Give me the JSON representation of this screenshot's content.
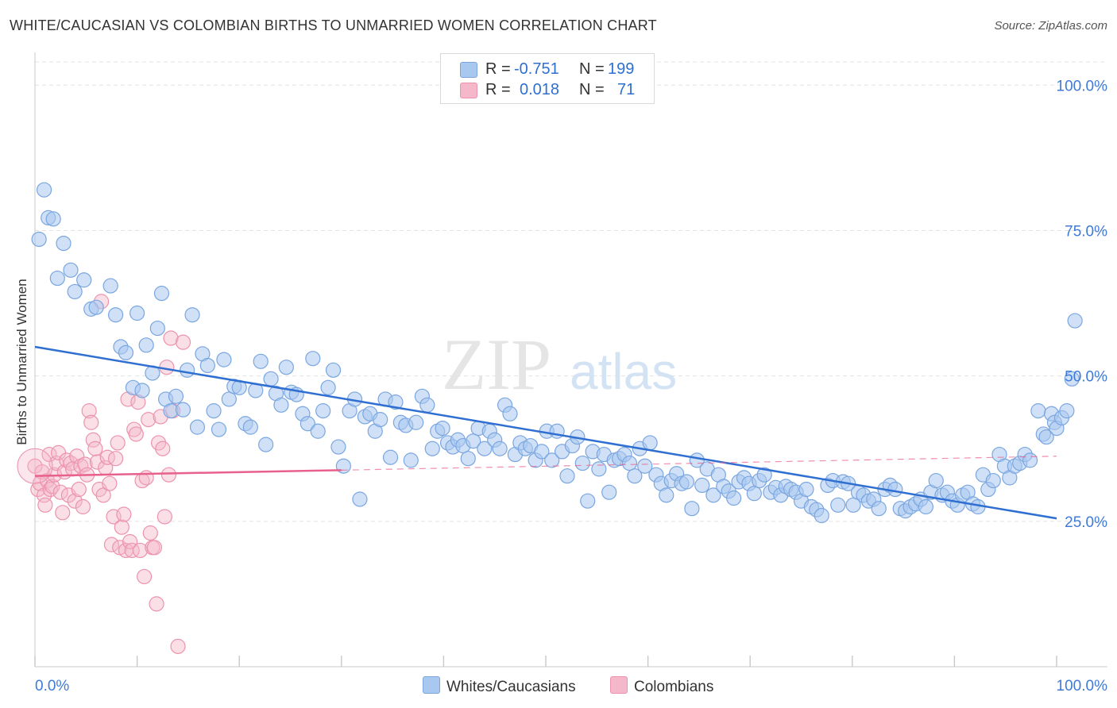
{
  "title": "WHITE/CAUCASIAN VS COLOMBIAN BIRTHS TO UNMARRIED WOMEN CORRELATION CHART",
  "source": "Source: ZipAtlas.com",
  "watermark": {
    "zip": "ZIP",
    "atlas": "atlas"
  },
  "legend": {
    "rows": [
      {
        "r_label": "R =",
        "r_value": "-0.751",
        "n_label": "N =",
        "n_value": "199"
      },
      {
        "r_label": "R =",
        "r_value": "0.018",
        "n_label": "N =",
        "n_value": "71"
      }
    ]
  },
  "bottom_legend": {
    "white": "Whites/Caucasians",
    "colombian": "Colombians"
  },
  "colors": {
    "white_fill": "#a9c8f0",
    "white_stroke": "#7aa6e0",
    "white_line": "#2f6fd1",
    "colombian_fill": "#f5b8ca",
    "colombian_stroke": "#ec93ad",
    "colombian_line": "#e8608c",
    "grid": "#e3e3e3",
    "axis_value": "#3f7ad6"
  },
  "chart_data": {
    "type": "scatter",
    "title": "WHITE/CAUCASIAN VS COLOMBIAN BIRTHS TO UNMARRIED WOMEN CORRELATION CHART",
    "xlabel": "",
    "ylabel": "Births to Unmarried Women",
    "xlim": [
      0,
      100
    ],
    "ylim": [
      0,
      104
    ],
    "x_tick_labels": [
      "0.0%",
      "100.0%"
    ],
    "y_tick_labels": [
      "25.0%",
      "50.0%",
      "75.0%",
      "100.0%"
    ],
    "y_ticks": [
      25,
      50,
      75,
      100
    ],
    "grid": true,
    "legend_position": "top-center",
    "series": [
      {
        "name": "Whites/Caucasians",
        "r": -0.751,
        "n": 199,
        "trend": {
          "x0": 0,
          "y0": 55.0,
          "x1": 100,
          "y1": 25.5
        },
        "points": [
          [
            0.4,
            73.5
          ],
          [
            0.9,
            82.0
          ],
          [
            1.3,
            77.2
          ],
          [
            1.8,
            77.0
          ],
          [
            2.2,
            66.8
          ],
          [
            2.8,
            72.8
          ],
          [
            3.5,
            68.2
          ],
          [
            3.9,
            64.5
          ],
          [
            4.8,
            66.5
          ],
          [
            5.5,
            61.5
          ],
          [
            6.0,
            61.8
          ],
          [
            7.4,
            65.5
          ],
          [
            7.9,
            60.5
          ],
          [
            8.4,
            55.0
          ],
          [
            8.9,
            54.0
          ],
          [
            9.6,
            48.0
          ],
          [
            10.0,
            60.8
          ],
          [
            10.5,
            47.5
          ],
          [
            10.9,
            55.3
          ],
          [
            11.5,
            50.5
          ],
          [
            12.0,
            58.2
          ],
          [
            12.4,
            64.2
          ],
          [
            12.8,
            46.0
          ],
          [
            13.3,
            44.0
          ],
          [
            13.8,
            46.5
          ],
          [
            14.5,
            44.2
          ],
          [
            14.9,
            51.0
          ],
          [
            15.4,
            60.5
          ],
          [
            15.9,
            41.2
          ],
          [
            16.4,
            53.8
          ],
          [
            16.9,
            51.8
          ],
          [
            17.5,
            44.0
          ],
          [
            18.0,
            40.8
          ],
          [
            18.5,
            52.8
          ],
          [
            19.0,
            46.0
          ],
          [
            19.5,
            48.2
          ],
          [
            20.0,
            48.0
          ],
          [
            20.6,
            41.8
          ],
          [
            21.1,
            41.2
          ],
          [
            21.6,
            47.5
          ],
          [
            22.1,
            52.5
          ],
          [
            22.6,
            38.2
          ],
          [
            23.1,
            49.5
          ],
          [
            23.6,
            47.0
          ],
          [
            24.1,
            45.0
          ],
          [
            24.6,
            51.5
          ],
          [
            25.1,
            47.2
          ],
          [
            25.6,
            46.8
          ],
          [
            26.2,
            43.5
          ],
          [
            26.7,
            41.8
          ],
          [
            27.2,
            53.0
          ],
          [
            27.7,
            40.5
          ],
          [
            28.2,
            44.0
          ],
          [
            28.7,
            48.0
          ],
          [
            29.2,
            51.0
          ],
          [
            29.7,
            37.8
          ],
          [
            30.2,
            34.5
          ],
          [
            30.8,
            44.0
          ],
          [
            31.3,
            46.0
          ],
          [
            31.8,
            28.8
          ],
          [
            32.3,
            43.0
          ],
          [
            32.8,
            43.5
          ],
          [
            33.3,
            40.5
          ],
          [
            33.8,
            42.5
          ],
          [
            34.3,
            46.0
          ],
          [
            34.8,
            36.0
          ],
          [
            35.3,
            45.5
          ],
          [
            35.8,
            42.0
          ],
          [
            36.3,
            41.5
          ],
          [
            36.8,
            35.5
          ],
          [
            37.3,
            42.0
          ],
          [
            37.9,
            46.5
          ],
          [
            38.4,
            45.0
          ],
          [
            38.9,
            37.5
          ],
          [
            39.4,
            40.5
          ],
          [
            39.9,
            41.0
          ],
          [
            40.4,
            38.5
          ],
          [
            40.9,
            37.8
          ],
          [
            41.4,
            39.0
          ],
          [
            41.9,
            38.0
          ],
          [
            42.4,
            35.8
          ],
          [
            42.9,
            38.8
          ],
          [
            43.4,
            41.0
          ],
          [
            44.0,
            37.5
          ],
          [
            44.5,
            40.5
          ],
          [
            45.0,
            39.0
          ],
          [
            45.5,
            37.5
          ],
          [
            46.0,
            45.0
          ],
          [
            46.5,
            43.5
          ],
          [
            47.0,
            36.5
          ],
          [
            47.5,
            38.5
          ],
          [
            48.0,
            37.5
          ],
          [
            48.5,
            38.0
          ],
          [
            49.0,
            35.5
          ],
          [
            49.6,
            37.0
          ],
          [
            50.1,
            40.5
          ],
          [
            50.6,
            35.5
          ],
          [
            51.1,
            40.5
          ],
          [
            51.6,
            37.0
          ],
          [
            52.1,
            32.8
          ],
          [
            52.6,
            38.0
          ],
          [
            53.1,
            39.5
          ],
          [
            53.6,
            35.0
          ],
          [
            54.1,
            28.5
          ],
          [
            54.6,
            37.0
          ],
          [
            55.2,
            34.0
          ],
          [
            55.7,
            36.5
          ],
          [
            56.2,
            30.0
          ],
          [
            56.7,
            35.5
          ],
          [
            57.2,
            35.8
          ],
          [
            57.7,
            36.5
          ],
          [
            58.2,
            35.0
          ],
          [
            58.7,
            32.8
          ],
          [
            59.2,
            37.5
          ],
          [
            59.7,
            34.5
          ],
          [
            60.2,
            38.5
          ],
          [
            60.8,
            33.0
          ],
          [
            61.3,
            31.5
          ],
          [
            61.8,
            29.5
          ],
          [
            62.3,
            32.0
          ],
          [
            62.8,
            33.2
          ],
          [
            63.3,
            31.5
          ],
          [
            63.8,
            31.8
          ],
          [
            64.3,
            27.2
          ],
          [
            64.8,
            35.5
          ],
          [
            65.3,
            31.2
          ],
          [
            65.8,
            34.0
          ],
          [
            66.4,
            29.5
          ],
          [
            66.9,
            33.0
          ],
          [
            67.4,
            31.0
          ],
          [
            67.9,
            30.2
          ],
          [
            68.4,
            29.0
          ],
          [
            68.9,
            31.8
          ],
          [
            69.4,
            32.5
          ],
          [
            69.9,
            31.5
          ],
          [
            70.4,
            29.8
          ],
          [
            70.9,
            32.0
          ],
          [
            71.4,
            33.0
          ],
          [
            72.0,
            30.0
          ],
          [
            72.5,
            30.8
          ],
          [
            73.0,
            29.5
          ],
          [
            73.5,
            31.0
          ],
          [
            74.0,
            30.5
          ],
          [
            74.5,
            30.0
          ],
          [
            75.0,
            28.5
          ],
          [
            75.5,
            30.5
          ],
          [
            76.0,
            27.5
          ],
          [
            76.5,
            27.0
          ],
          [
            77.0,
            26.0
          ],
          [
            77.6,
            31.2
          ],
          [
            78.1,
            32.0
          ],
          [
            78.6,
            27.8
          ],
          [
            79.1,
            31.8
          ],
          [
            79.6,
            31.5
          ],
          [
            80.1,
            27.8
          ],
          [
            80.6,
            30.0
          ],
          [
            81.1,
            29.5
          ],
          [
            81.6,
            28.5
          ],
          [
            82.1,
            28.8
          ],
          [
            82.6,
            27.2
          ],
          [
            83.2,
            30.5
          ],
          [
            83.7,
            31.2
          ],
          [
            84.2,
            30.5
          ],
          [
            84.7,
            27.2
          ],
          [
            85.2,
            26.8
          ],
          [
            85.7,
            27.5
          ],
          [
            86.2,
            28.0
          ],
          [
            86.7,
            28.8
          ],
          [
            87.2,
            27.5
          ],
          [
            87.7,
            30.0
          ],
          [
            88.2,
            32.0
          ],
          [
            88.8,
            29.5
          ],
          [
            89.3,
            30.0
          ],
          [
            89.8,
            28.5
          ],
          [
            90.3,
            27.8
          ],
          [
            90.8,
            29.5
          ],
          [
            91.3,
            30.0
          ],
          [
            91.8,
            28.0
          ],
          [
            92.3,
            27.5
          ],
          [
            92.8,
            33.0
          ],
          [
            93.3,
            30.5
          ],
          [
            93.8,
            32.0
          ],
          [
            94.4,
            36.5
          ],
          [
            94.9,
            34.5
          ],
          [
            95.4,
            32.5
          ],
          [
            95.9,
            34.5
          ],
          [
            96.4,
            35.0
          ],
          [
            96.9,
            36.5
          ],
          [
            97.4,
            35.5
          ],
          [
            98.2,
            44.0
          ],
          [
            98.7,
            40.0
          ],
          [
            99.0,
            39.5
          ],
          [
            99.5,
            43.5
          ],
          [
            99.8,
            42.0
          ],
          [
            100.0,
            41.0
          ],
          [
            100.5,
            42.8
          ],
          [
            101.0,
            44.0
          ],
          [
            101.5,
            49.5
          ],
          [
            101.8,
            59.5
          ]
        ]
      },
      {
        "name": "Colombians",
        "r": 0.018,
        "n": 71,
        "trend": {
          "x0": 0,
          "y0": 32.8,
          "x1": 30,
          "y1": 33.8
        },
        "trend_extension": {
          "x0": 30,
          "y0": 33.8,
          "x1": 100,
          "y1": 36.2
        },
        "points": [
          [
            0.0,
            34.5
          ],
          [
            0.3,
            30.5
          ],
          [
            0.5,
            31.5
          ],
          [
            0.7,
            33.5
          ],
          [
            0.9,
            29.5
          ],
          [
            1.0,
            27.8
          ],
          [
            1.2,
            32.0
          ],
          [
            1.4,
            36.5
          ],
          [
            1.5,
            30.5
          ],
          [
            1.7,
            31.0
          ],
          [
            1.9,
            33.0
          ],
          [
            2.1,
            35.0
          ],
          [
            2.3,
            36.8
          ],
          [
            2.5,
            30.0
          ],
          [
            2.7,
            26.5
          ],
          [
            2.9,
            33.5
          ],
          [
            3.1,
            35.5
          ],
          [
            3.3,
            29.5
          ],
          [
            3.5,
            35.0
          ],
          [
            3.7,
            34.0
          ],
          [
            3.9,
            28.5
          ],
          [
            4.1,
            36.2
          ],
          [
            4.3,
            30.5
          ],
          [
            4.5,
            34.5
          ],
          [
            4.7,
            27.5
          ],
          [
            4.9,
            34.8
          ],
          [
            5.1,
            33.0
          ],
          [
            5.3,
            44.0
          ],
          [
            5.5,
            42.0
          ],
          [
            5.7,
            39.0
          ],
          [
            5.9,
            37.5
          ],
          [
            6.1,
            35.2
          ],
          [
            6.3,
            30.5
          ],
          [
            6.5,
            62.8
          ],
          [
            6.7,
            29.5
          ],
          [
            6.9,
            34.2
          ],
          [
            7.1,
            36.0
          ],
          [
            7.3,
            31.5
          ],
          [
            7.5,
            21.0
          ],
          [
            7.7,
            25.8
          ],
          [
            7.9,
            35.8
          ],
          [
            8.1,
            38.5
          ],
          [
            8.3,
            20.5
          ],
          [
            8.5,
            24.0
          ],
          [
            8.7,
            26.2
          ],
          [
            8.9,
            20.0
          ],
          [
            9.1,
            46.0
          ],
          [
            9.3,
            21.5
          ],
          [
            9.5,
            20.0
          ],
          [
            9.7,
            40.8
          ],
          [
            9.9,
            40.0
          ],
          [
            10.1,
            45.5
          ],
          [
            10.3,
            20.0
          ],
          [
            10.5,
            32.0
          ],
          [
            10.7,
            15.5
          ],
          [
            10.9,
            32.5
          ],
          [
            11.1,
            42.5
          ],
          [
            11.3,
            23.0
          ],
          [
            11.5,
            20.5
          ],
          [
            11.7,
            20.5
          ],
          [
            11.9,
            10.8
          ],
          [
            12.1,
            38.5
          ],
          [
            12.3,
            43.0
          ],
          [
            12.5,
            37.5
          ],
          [
            12.7,
            25.8
          ],
          [
            12.9,
            51.5
          ],
          [
            13.1,
            33.0
          ],
          [
            13.3,
            56.5
          ],
          [
            13.5,
            44.0
          ],
          [
            14.0,
            3.5
          ],
          [
            14.5,
            55.8
          ]
        ]
      }
    ]
  }
}
